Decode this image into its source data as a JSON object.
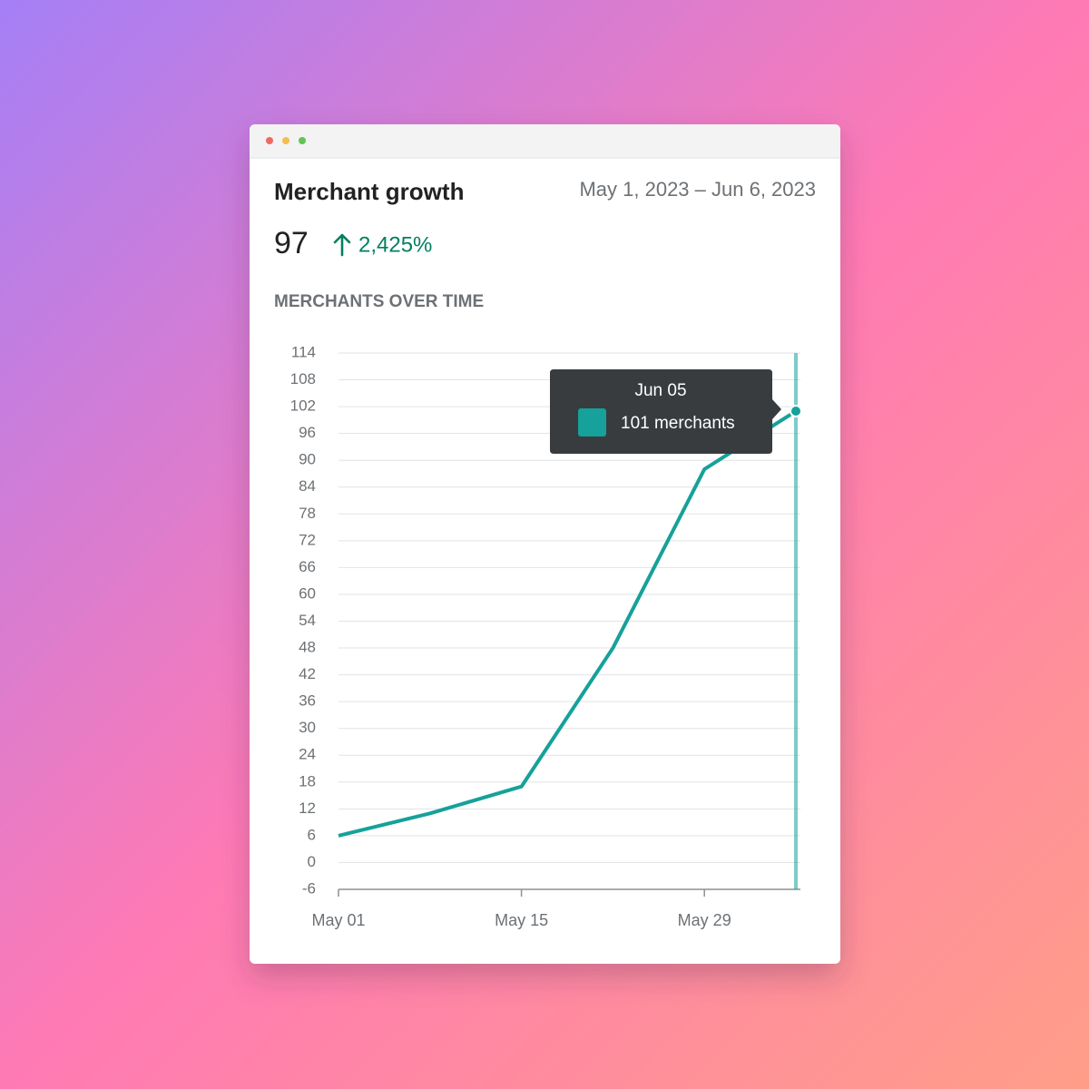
{
  "chart_data": {
    "type": "line",
    "title": "Merchant growth",
    "date_range": "May 1, 2023 – Jun 6, 2023",
    "metric": 97,
    "change": "2,425%",
    "subtitle": "MERCHANTS OVER TIME",
    "categories": [
      "May 01",
      null,
      "May 15",
      null,
      "May 29",
      null
    ],
    "values": [
      6,
      11,
      17,
      48,
      88,
      101
    ],
    "color": "#16a19a",
    "ylim": [
      -6,
      114
    ],
    "yticks": [
      -6,
      0,
      6,
      12,
      18,
      24,
      30,
      36,
      42,
      48,
      54,
      60,
      66,
      72,
      78,
      84,
      90,
      96,
      102,
      108,
      114
    ],
    "grid": true,
    "tooltip": {
      "title": "Jun 05",
      "label": "101 merchants"
    }
  }
}
